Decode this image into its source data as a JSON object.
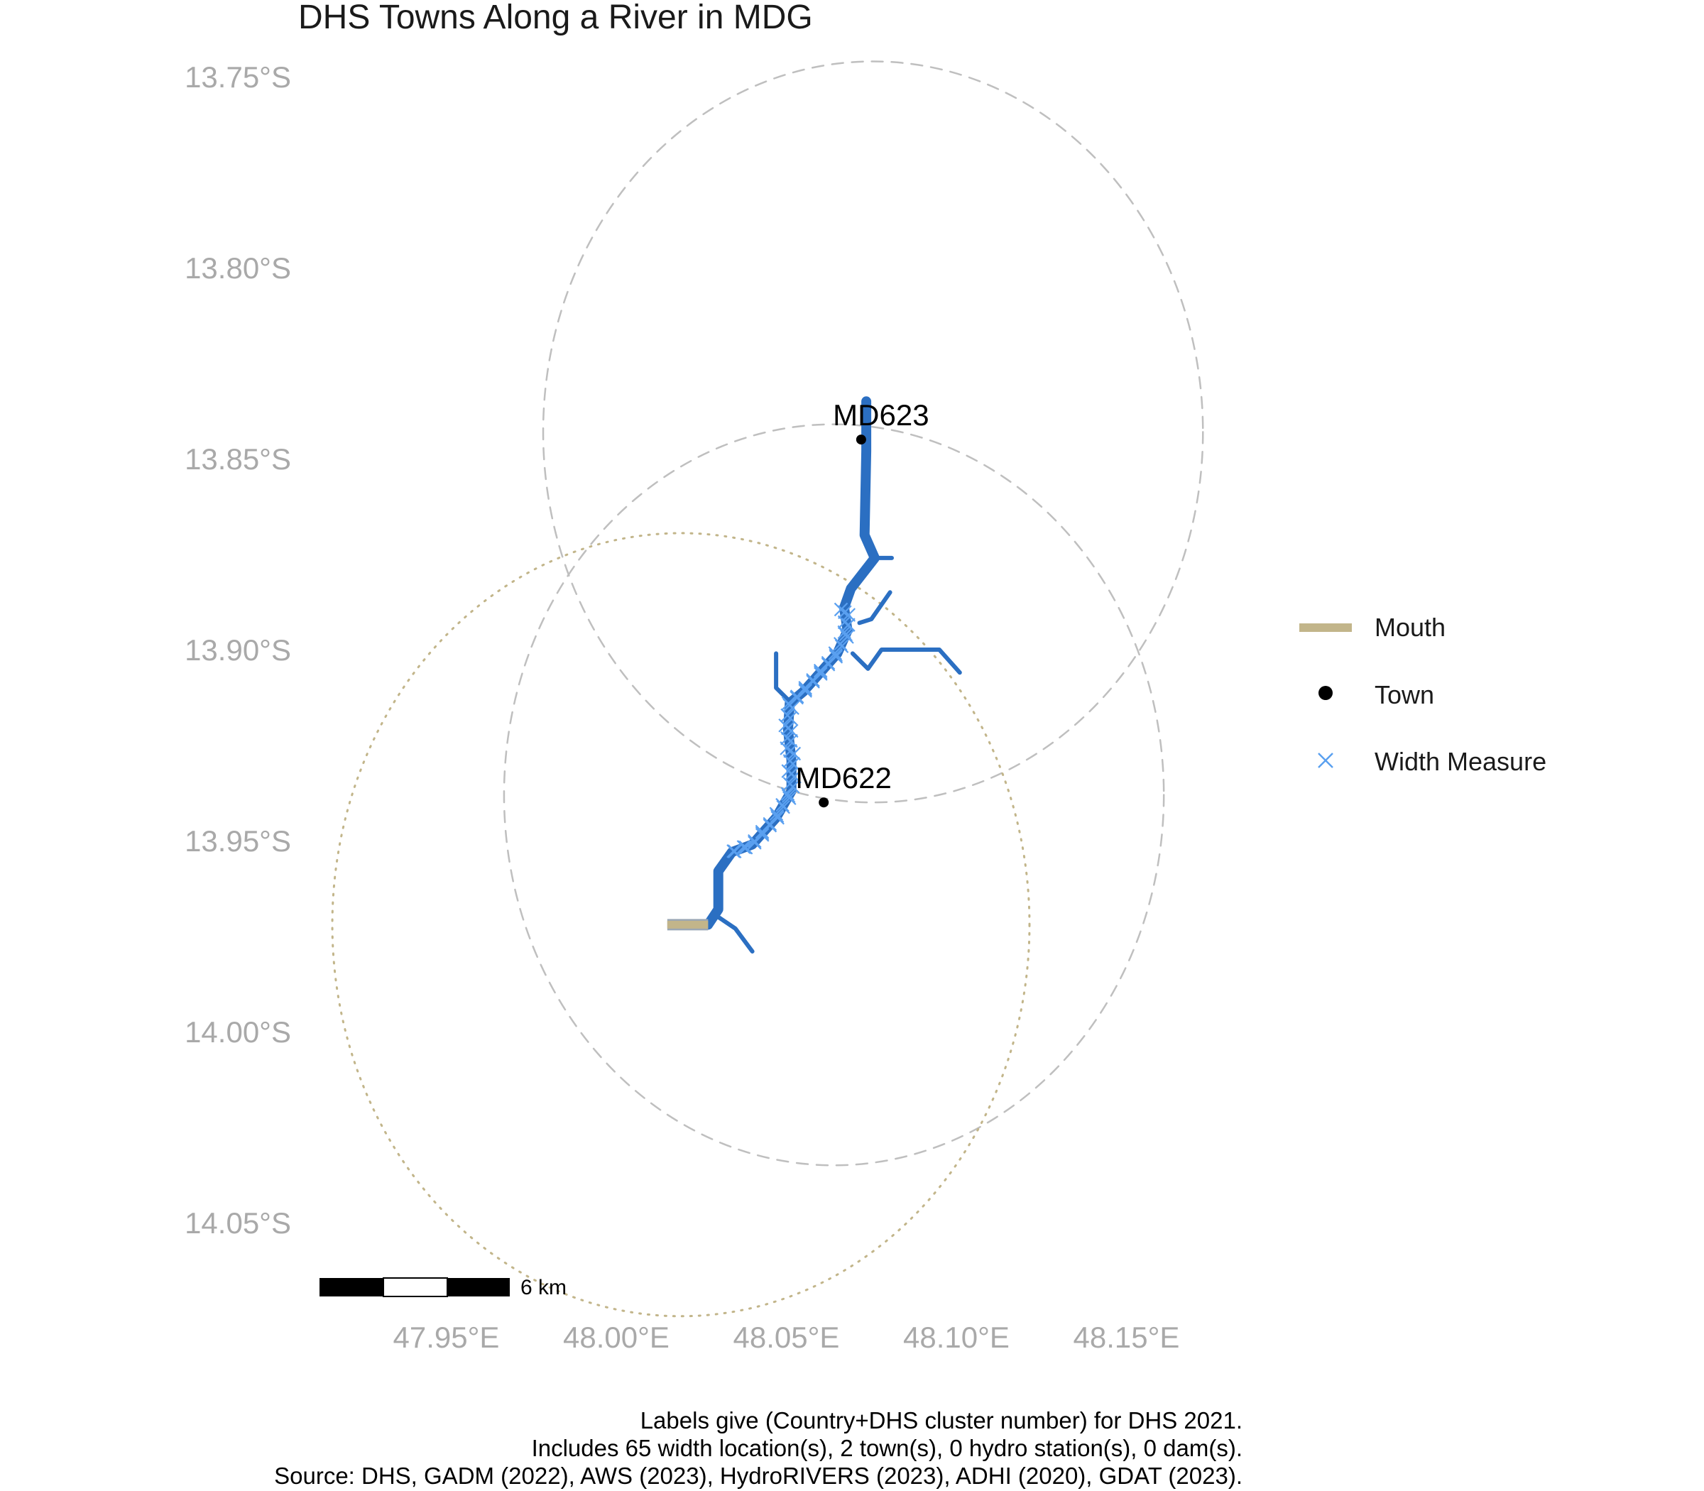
{
  "title": "DHS Towns Along a River in MDG",
  "y_ticks": [
    {
      "lat": -13.75,
      "label": "13.75°S"
    },
    {
      "lat": -13.8,
      "label": "13.80°S"
    },
    {
      "lat": -13.85,
      "label": "13.85°S"
    },
    {
      "lat": -13.9,
      "label": "13.90°S"
    },
    {
      "lat": -13.95,
      "label": "13.95°S"
    },
    {
      "lat": -14.0,
      "label": "14.00°S"
    },
    {
      "lat": -14.05,
      "label": "14.05°S"
    }
  ],
  "x_ticks": [
    {
      "lon": 47.95,
      "label": "47.95°E"
    },
    {
      "lon": 48.0,
      "label": "48.00°E"
    },
    {
      "lon": 48.05,
      "label": "48.05°E"
    },
    {
      "lon": 48.1,
      "label": "48.10°E"
    },
    {
      "lon": 48.15,
      "label": "48.15°E"
    }
  ],
  "towns": [
    {
      "id": "MD623",
      "label": "MD623",
      "lon": 48.072,
      "lat": -13.845
    },
    {
      "id": "MD622",
      "label": "MD622",
      "lon": 48.061,
      "lat": -13.94
    }
  ],
  "buffers": [
    {
      "center_lon": 48.0755,
      "center_lat": -13.843,
      "radius_deg": 0.097,
      "style": "dashed",
      "color": "#bfbfbf"
    },
    {
      "center_lon": 48.064,
      "center_lat": -13.938,
      "radius_deg": 0.097,
      "style": "dashed",
      "color": "#bfbfbf"
    },
    {
      "center_lon": 48.019,
      "center_lat": -13.972,
      "radius_deg": 0.1025,
      "style": "dotted",
      "color": "#c2b58a"
    }
  ],
  "river": {
    "color": "#2b6fc2",
    "main_channel": [
      [
        48.0735,
        -13.835
      ],
      [
        48.0735,
        -13.848
      ],
      [
        48.073,
        -13.87
      ],
      [
        48.076,
        -13.876
      ],
      [
        48.069,
        -13.884
      ],
      [
        48.067,
        -13.889
      ],
      [
        48.068,
        -13.895
      ],
      [
        48.065,
        -13.901
      ],
      [
        48.059,
        -13.907
      ],
      [
        48.055,
        -13.911
      ],
      [
        48.051,
        -13.914
      ],
      [
        48.0505,
        -13.921
      ],
      [
        48.0515,
        -13.929
      ],
      [
        48.0515,
        -13.937
      ],
      [
        48.047,
        -13.944
      ],
      [
        48.04,
        -13.951
      ],
      [
        48.034,
        -13.953
      ],
      [
        48.03,
        -13.958
      ],
      [
        48.03,
        -13.968
      ],
      [
        48.027,
        -13.972
      ]
    ],
    "tributaries": [
      [
        [
          48.076,
          -13.876
        ],
        [
          48.081,
          -13.876
        ]
      ],
      [
        [
          48.0695,
          -13.901
        ],
        [
          48.074,
          -13.905
        ],
        [
          48.078,
          -13.9
        ],
        [
          48.095,
          -13.9
        ],
        [
          48.101,
          -13.906
        ]
      ],
      [
        [
          48.0715,
          -13.893
        ],
        [
          48.075,
          -13.892
        ],
        [
          48.0805,
          -13.885
        ]
      ],
      [
        [
          48.0515,
          -13.914
        ],
        [
          48.047,
          -13.91
        ],
        [
          48.047,
          -13.901
        ]
      ],
      [
        [
          48.03,
          -13.97
        ],
        [
          48.035,
          -13.973
        ],
        [
          48.04,
          -13.979
        ]
      ]
    ],
    "mouth_segment": [
      [
        48.015,
        -13.972
      ],
      [
        48.027,
        -13.972
      ]
    ]
  },
  "width_measure_count": 65,
  "legend": {
    "mouth_label": "Mouth",
    "mouth_color": "#c2b58a",
    "town_label": "Town",
    "width_label": "Width Measure",
    "width_color": "#5aa0f0"
  },
  "scale_bar": {
    "label": "6 km"
  },
  "caption": [
    "Labels give (Country+DHS cluster number) for DHS 2021.",
    "Includes 65 width location(s), 2 town(s), 0 hydro station(s), 0 dam(s).",
    "Source: DHS, GADM (2022), AWS (2023), HydroRIVERS (2023), ADHI (2020), GDAT (2023)."
  ]
}
